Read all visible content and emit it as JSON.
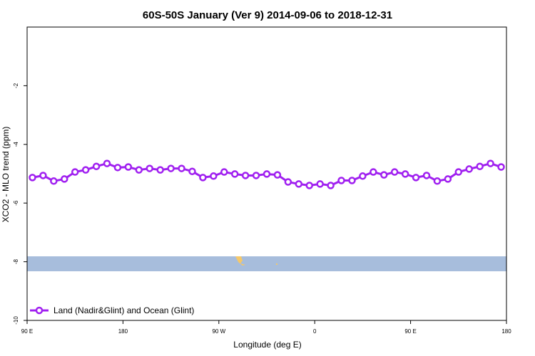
{
  "chart_data": {
    "type": "line",
    "title": "60S-50S January (Ver 9)   2014-09-06 to 2018-12-31",
    "x_label": "Longitude (deg E)",
    "y_label": "XCO2 - MLO trend (ppm)",
    "x": [
      95,
      105,
      115,
      125,
      135,
      145,
      155,
      165,
      175,
      185,
      195,
      205,
      215,
      225,
      235,
      245,
      255,
      265,
      275,
      285,
      295,
      305,
      315,
      325,
      335,
      345,
      355,
      365,
      375,
      385,
      395,
      405,
      415,
      425,
      435,
      445,
      455,
      465,
      475,
      485,
      495,
      505,
      515,
      525,
      535
    ],
    "series": [
      {
        "name": "Land (Nadir&Glint) and Ocean (Glint)",
        "color": "#a020f0",
        "values": [
          -5.13,
          -5.06,
          -5.25,
          -5.18,
          -4.94,
          -4.87,
          -4.75,
          -4.65,
          -4.79,
          -4.77,
          -4.87,
          -4.82,
          -4.87,
          -4.82,
          -4.82,
          -4.92,
          -5.13,
          -5.08,
          -4.94,
          -5.01,
          -5.06,
          -5.06,
          -5.01,
          -5.04,
          -5.28,
          -5.35,
          -5.4,
          -5.35,
          -5.4,
          -5.23,
          -5.23,
          -5.08,
          -4.94,
          -5.04,
          -4.94,
          -5.01,
          -5.13,
          -5.06,
          -5.25,
          -5.18,
          -4.94,
          -4.84,
          -4.75,
          -4.65,
          -4.77
        ]
      }
    ],
    "xlim": [
      90,
      540
    ],
    "xticks": [
      {
        "value": 90,
        "label": "90 E"
      },
      180,
      {
        "value": 270,
        "label": "90 W"
      },
      {
        "value": 360,
        "label": "0"
      },
      {
        "value": 450,
        "label": "90 E"
      },
      {
        "value": 540,
        "label": "180"
      }
    ],
    "ylim": [
      -10,
      0
    ],
    "yticks": [
      -10,
      -8,
      -6,
      -4,
      -2
    ],
    "legend": "bottom-left"
  }
}
